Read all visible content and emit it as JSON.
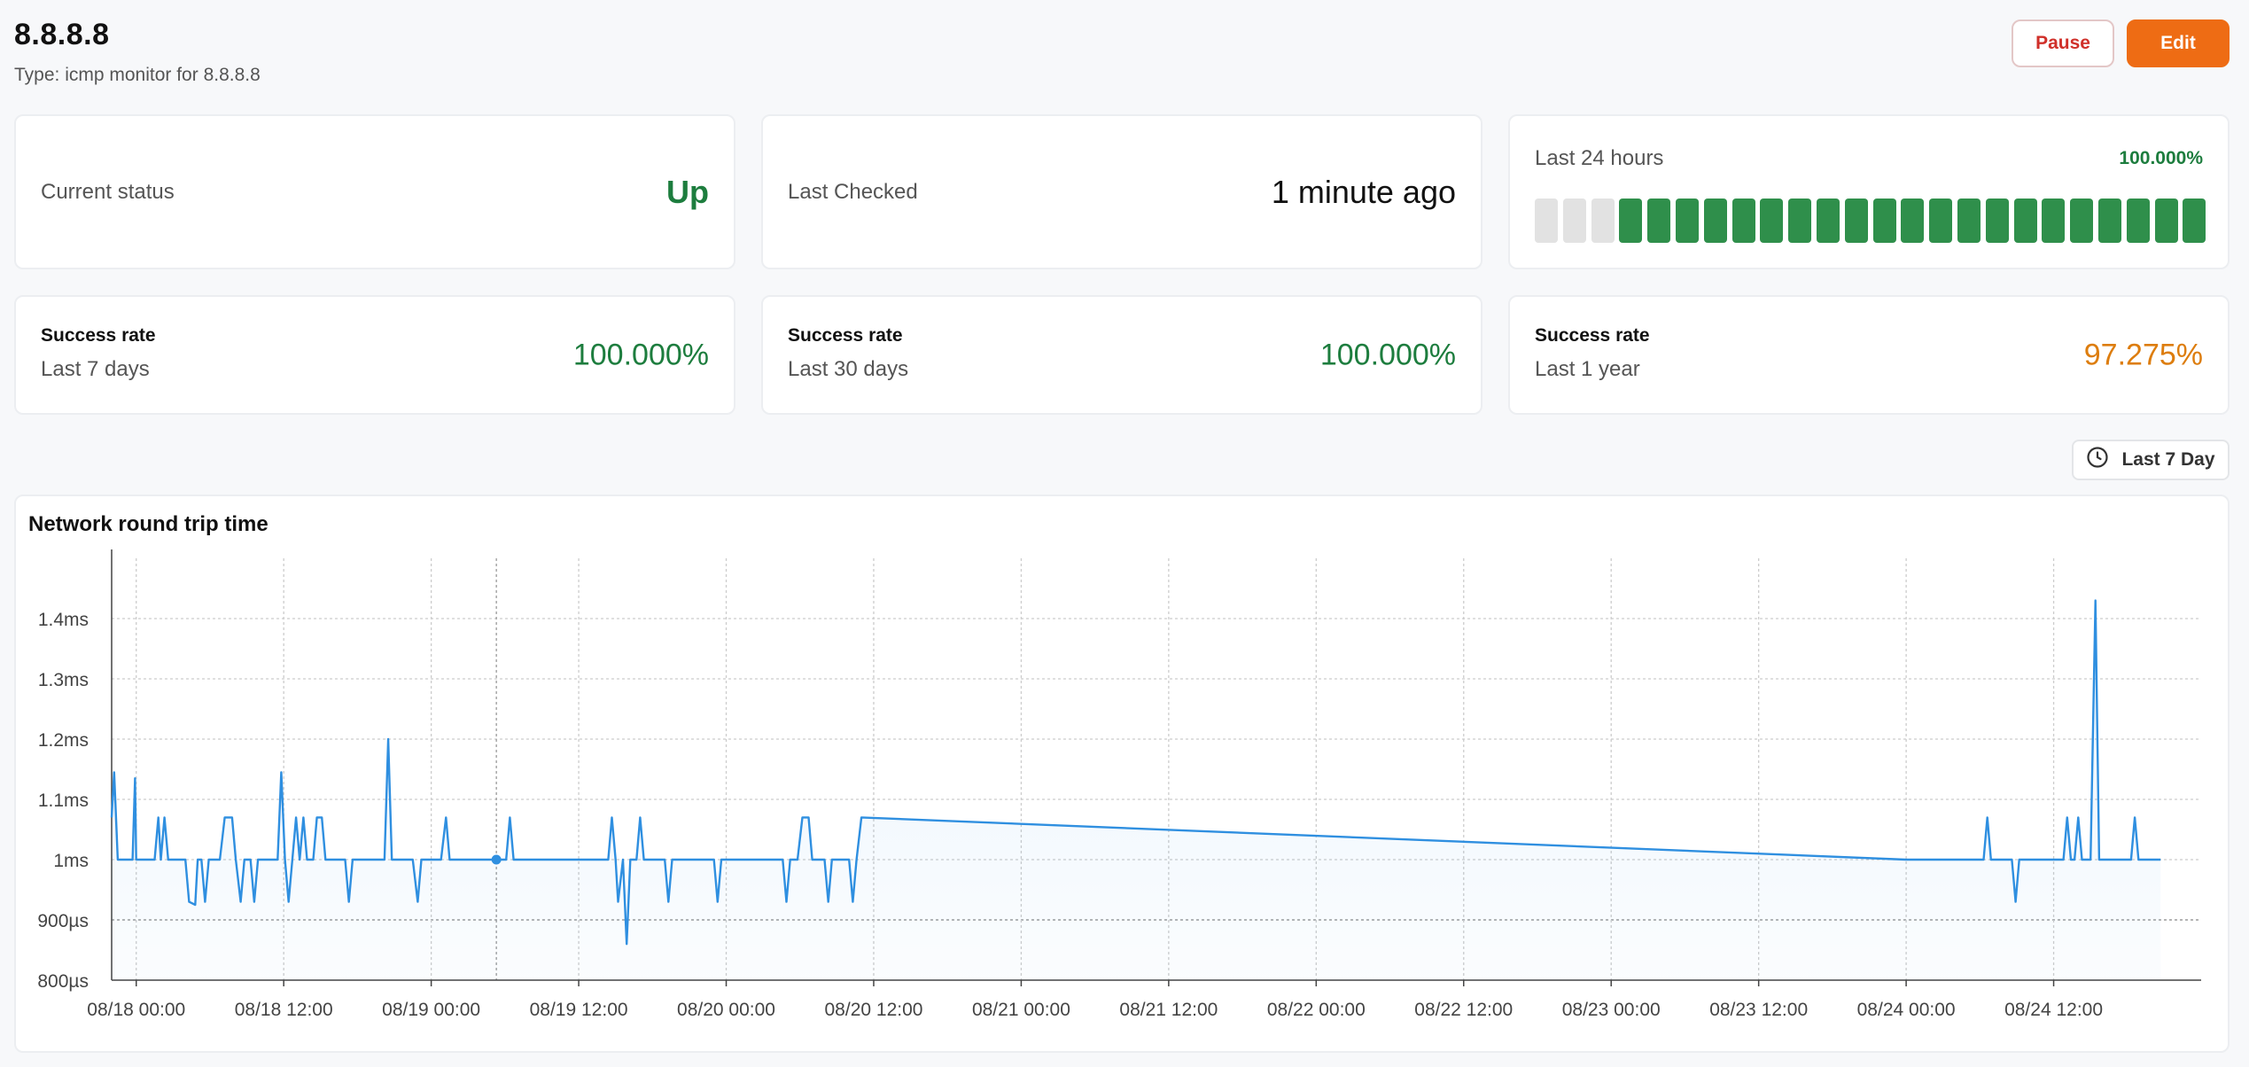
{
  "header": {
    "title": "8.8.8.8",
    "subtitle": "Type: icmp monitor for 8.8.8.8"
  },
  "actions": {
    "pause_label": "Pause",
    "edit_label": "Edit"
  },
  "status": {
    "current_label": "Current status",
    "current_value": "Up",
    "checked_label": "Last Checked",
    "checked_value": "1 minute ago"
  },
  "last24": {
    "label": "Last 24 hours",
    "percent": "100.000%",
    "bars": [
      "none",
      "none",
      "none",
      "up",
      "up",
      "up",
      "up",
      "up",
      "up",
      "up",
      "up",
      "up",
      "up",
      "up",
      "up",
      "up",
      "up",
      "up",
      "up",
      "up",
      "up",
      "up",
      "up",
      "up"
    ]
  },
  "success_rates": [
    {
      "title": "Success rate",
      "period": "Last 7 days",
      "value": "100.000%"
    },
    {
      "title": "Success rate",
      "period": "Last 30 days",
      "value": "100.000%"
    },
    {
      "title": "Success rate",
      "period": "Last 1 year",
      "value": "97.275%"
    }
  ],
  "colors": {
    "up": "#2f8f4b",
    "none": "#e2e2e2",
    "line": "#2f8fe0",
    "warn": "#dd7d0e"
  },
  "range_selector": {
    "icon": "clock-icon",
    "label": "Last 7 Day"
  },
  "chart_data": {
    "type": "line",
    "title": "Network round trip time",
    "y_unit": "ms",
    "ylim": [
      0.8,
      1.5
    ],
    "y_ticks": [
      {
        "value": 0.8,
        "label": "800µs"
      },
      {
        "value": 0.9,
        "label": "900µs"
      },
      {
        "value": 1.0,
        "label": "1ms"
      },
      {
        "value": 1.1,
        "label": "1.1ms"
      },
      {
        "value": 1.2,
        "label": "1.2ms"
      },
      {
        "value": 1.3,
        "label": "1.3ms"
      },
      {
        "value": 1.4,
        "label": "1.4ms"
      }
    ],
    "x_unit": "hours from 08/18 00:00",
    "xlim": [
      -2,
      168
    ],
    "x_ticks": [
      {
        "value": 0,
        "label": "08/18 00:00"
      },
      {
        "value": 12,
        "label": "08/18 12:00"
      },
      {
        "value": 24,
        "label": "08/19 00:00"
      },
      {
        "value": 36,
        "label": "08/19 12:00"
      },
      {
        "value": 48,
        "label": "08/20 00:00"
      },
      {
        "value": 60,
        "label": "08/20 12:00"
      },
      {
        "value": 72,
        "label": "08/21 00:00"
      },
      {
        "value": 84,
        "label": "08/21 12:00"
      },
      {
        "value": 96,
        "label": "08/22 00:00"
      },
      {
        "value": 108,
        "label": "08/22 12:00"
      },
      {
        "value": 120,
        "label": "08/23 00:00"
      },
      {
        "value": 132,
        "label": "08/23 12:00"
      },
      {
        "value": 144,
        "label": "08/24 00:00"
      },
      {
        "value": 156,
        "label": "08/24 12:00"
      }
    ],
    "grid": true,
    "highlight_x": 29.3,
    "series": [
      {
        "color": "#2f8fe0",
        "points": [
          [
            -2,
            1.07
          ],
          [
            -1.8,
            1.145
          ],
          [
            -1.5,
            1.0
          ],
          [
            0,
            1.0
          ],
          [
            -0.3,
            1.0
          ],
          [
            -0.1,
            1.135
          ],
          [
            0.2,
            1.0
          ],
          [
            1.5,
            1.0
          ],
          [
            1.8,
            1.07
          ],
          [
            2.0,
            1.0
          ],
          [
            2.3,
            1.07
          ],
          [
            2.6,
            1.0
          ],
          [
            4.0,
            1.0
          ],
          [
            4.3,
            0.93
          ],
          [
            4.8,
            0.925
          ],
          [
            5.0,
            1.0
          ],
          [
            5.3,
            1.0
          ],
          [
            5.6,
            0.93
          ],
          [
            5.9,
            1.0
          ],
          [
            6.8,
            1.0
          ],
          [
            7.2,
            1.07
          ],
          [
            7.8,
            1.07
          ],
          [
            8.1,
            1.0
          ],
          [
            8.5,
            0.93
          ],
          [
            8.8,
            1.0
          ],
          [
            9.3,
            1.0
          ],
          [
            9.6,
            0.93
          ],
          [
            9.9,
            1.0
          ],
          [
            11.5,
            1.0
          ],
          [
            11.8,
            1.145
          ],
          [
            12.1,
            1.0
          ],
          [
            12.4,
            0.93
          ],
          [
            12.7,
            1.0
          ],
          [
            13.0,
            1.07
          ],
          [
            13.3,
            1.0
          ],
          [
            13.6,
            1.07
          ],
          [
            13.9,
            1.0
          ],
          [
            14.4,
            1.0
          ],
          [
            14.7,
            1.07
          ],
          [
            15.1,
            1.07
          ],
          [
            15.4,
            1.0
          ],
          [
            17.0,
            1.0
          ],
          [
            17.3,
            0.93
          ],
          [
            17.6,
            1.0
          ],
          [
            19.0,
            1.0
          ],
          [
            19.3,
            1.0
          ],
          [
            20.2,
            1.0
          ],
          [
            20.5,
            1.2
          ],
          [
            20.8,
            1.0
          ],
          [
            22.5,
            1.0
          ],
          [
            22.9,
            0.93
          ],
          [
            23.2,
            1.0
          ],
          [
            24.8,
            1.0
          ],
          [
            25.2,
            1.07
          ],
          [
            25.5,
            1.0
          ],
          [
            29.3,
            1.0
          ],
          [
            30.1,
            1.0
          ],
          [
            30.4,
            1.07
          ],
          [
            30.7,
            1.0
          ],
          [
            38.4,
            1.0
          ],
          [
            38.7,
            1.07
          ],
          [
            39.0,
            1.0
          ],
          [
            39.2,
            0.93
          ],
          [
            39.6,
            1.0
          ],
          [
            39.9,
            0.86
          ],
          [
            40.2,
            1.0
          ],
          [
            40.7,
            1.0
          ],
          [
            41.0,
            1.07
          ],
          [
            41.3,
            1.0
          ],
          [
            42.4,
            1.0
          ],
          [
            43.0,
            1.0
          ],
          [
            43.3,
            0.93
          ],
          [
            43.6,
            1.0
          ],
          [
            46.6,
            1.0
          ],
          [
            47.0,
            1.0
          ],
          [
            47.3,
            0.93
          ],
          [
            47.6,
            1.0
          ],
          [
            52.6,
            1.0
          ],
          [
            52.9,
            0.93
          ],
          [
            53.2,
            1.0
          ],
          [
            53.8,
            1.0
          ],
          [
            54.2,
            1.07
          ],
          [
            54.7,
            1.07
          ],
          [
            55.0,
            1.0
          ],
          [
            56.0,
            1.0
          ],
          [
            56.3,
            0.93
          ],
          [
            56.6,
            1.0
          ],
          [
            58.0,
            1.0
          ],
          [
            58.3,
            0.93
          ],
          [
            58.6,
            1.0
          ],
          [
            59.0,
            1.07
          ],
          [
            144.0,
            1.0
          ],
          [
            150.3,
            1.0
          ],
          [
            150.6,
            1.07
          ],
          [
            150.9,
            1.0
          ],
          [
            152.6,
            1.0
          ],
          [
            152.9,
            0.93
          ],
          [
            153.2,
            1.0
          ],
          [
            156.8,
            1.0
          ],
          [
            157.1,
            1.07
          ],
          [
            157.4,
            1.0
          ],
          [
            157.7,
            1.0
          ],
          [
            158.0,
            1.07
          ],
          [
            158.3,
            1.0
          ],
          [
            159.0,
            1.0
          ],
          [
            159.4,
            1.43
          ],
          [
            159.7,
            1.0
          ],
          [
            162.3,
            1.0
          ],
          [
            162.6,
            1.07
          ],
          [
            162.9,
            1.0
          ],
          [
            164.7,
            1.0
          ]
        ]
      }
    ]
  }
}
